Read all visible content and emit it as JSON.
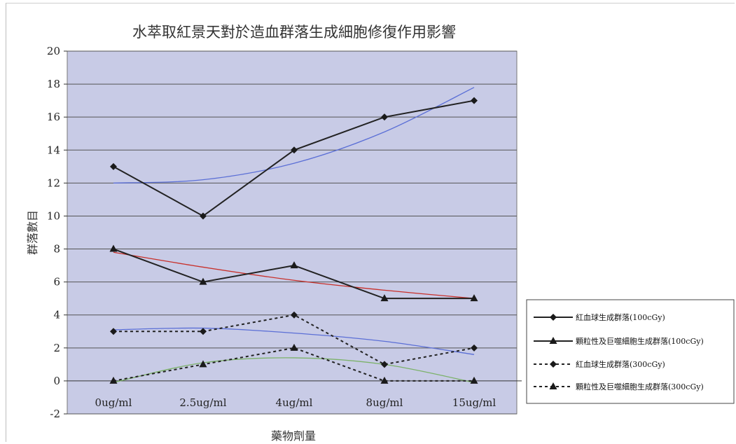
{
  "chart_data": {
    "type": "line",
    "title": "水萃取紅景天對於造血群落生成細胞修復作用影響",
    "xlabel": "藥物劑量",
    "ylabel": "群落數目",
    "categories": [
      "0ug/ml",
      "2.5ug/ml",
      "4ug/ml",
      "8ug/ml",
      "15ug/ml"
    ],
    "ylim": [
      -2,
      20
    ],
    "yticks": [
      -2,
      0,
      2,
      4,
      6,
      8,
      10,
      12,
      14,
      16,
      18,
      20
    ],
    "grid": true,
    "legend_position": "right",
    "colors": {
      "plot_background": "#c8cbe6",
      "series_line": "#222222",
      "trend_blue": "#5b6fd6",
      "trend_red": "#c8302a",
      "trend_green": "#7cb26a"
    },
    "series": [
      {
        "name": "紅血球生成群落(100cGy)",
        "values": [
          13,
          10,
          14,
          16,
          17
        ],
        "marker": "diamond",
        "line": "solid"
      },
      {
        "name": "顆粒性及巨噬細胞生成群落(100cGy)",
        "values": [
          8,
          6,
          7,
          5,
          5
        ],
        "marker": "triangle",
        "line": "solid"
      },
      {
        "name": "紅血球生成群落(300cGy)",
        "values": [
          3,
          3,
          4,
          1,
          2
        ],
        "marker": "diamond",
        "line": "dotted"
      },
      {
        "name": "顆粒性及巨噬細胞生成群落(300cGy)",
        "values": [
          0,
          1,
          2,
          0,
          0
        ],
        "marker": "triangle",
        "line": "dotted"
      }
    ],
    "trendlines": [
      {
        "color": "trend_blue",
        "values": [
          12.0,
          12.2,
          13.2,
          15.1,
          17.8
        ]
      },
      {
        "color": "trend_red",
        "values": [
          7.8,
          6.9,
          6.1,
          5.5,
          5.0
        ]
      },
      {
        "color": "trend_blue",
        "values": [
          3.1,
          3.2,
          2.9,
          2.4,
          1.6
        ]
      },
      {
        "color": "trend_green",
        "values": [
          -0.1,
          1.1,
          1.4,
          1.0,
          -0.1
        ]
      }
    ]
  }
}
